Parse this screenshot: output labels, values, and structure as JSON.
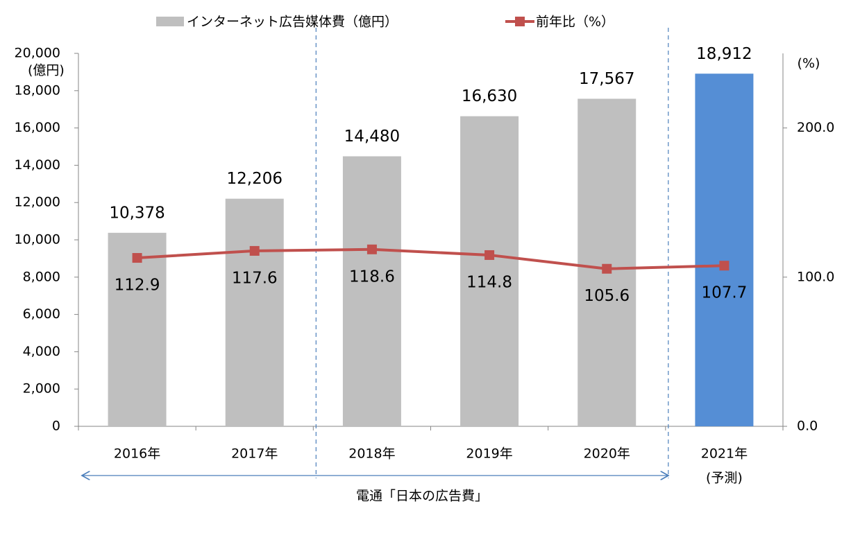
{
  "chart_data": {
    "type": "bar",
    "categories": [
      "2016年",
      "2017年",
      "2018年",
      "2019年",
      "2020年",
      "2021年"
    ],
    "category_note": "(予測)",
    "series": [
      {
        "name": "インターネット広告媒体費（億円）",
        "type": "bar",
        "colors": [
          "#bfbfbf",
          "#bfbfbf",
          "#bfbfbf",
          "#bfbfbf",
          "#bfbfbf",
          "#558ed5"
        ],
        "color": "#bfbfbf",
        "values": [
          10378,
          12206,
          14480,
          16630,
          17567,
          18912
        ],
        "value_labels": [
          "10,378",
          "12,206",
          "14,480",
          "16,630",
          "17,567",
          "18,912"
        ]
      },
      {
        "name": "前年比（%）",
        "type": "line",
        "axis": "y2",
        "color": "#c0504d",
        "values": [
          112.9,
          117.6,
          118.6,
          114.8,
          105.6,
          107.7
        ]
      }
    ],
    "y_unit": "(億円)",
    "y2_unit": "(%)",
    "ylim": [
      0,
      20000
    ],
    "yticks": [
      0,
      {
        "value": 2000,
        "label": "2,000"
      },
      {
        "value": 4000,
        "label": "4,000"
      },
      {
        "value": 6000,
        "label": "6,000"
      },
      {
        "value": 8000,
        "label": "8,000"
      },
      {
        "value": 10000,
        "label": "10,000"
      },
      {
        "value": 12000,
        "label": "12,000"
      },
      {
        "value": 14000,
        "label": "14,000"
      },
      {
        "value": 16000,
        "label": "16,000"
      },
      {
        "value": 18000,
        "label": "18,000"
      },
      {
        "value": 20000,
        "label": "20,000"
      }
    ],
    "y2lim": [
      0,
      250
    ],
    "y2ticks": [
      {
        "value": 0,
        "label": "0.0"
      },
      {
        "value": 100,
        "label": "100.0"
      },
      {
        "value": 200,
        "label": "200.0"
      }
    ],
    "source": "電通「日本の広告費」"
  }
}
